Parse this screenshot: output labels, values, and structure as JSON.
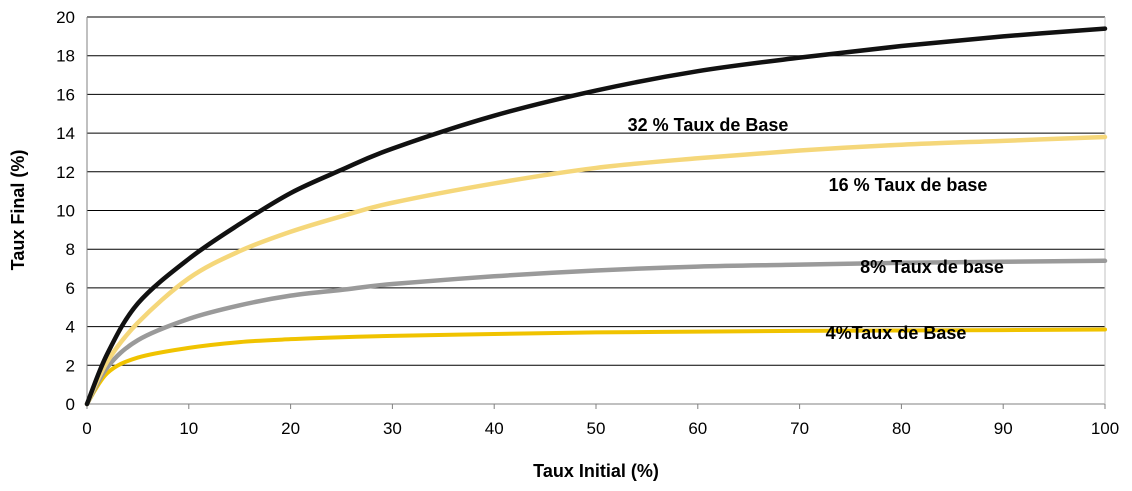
{
  "chart_data": {
    "type": "line",
    "xlabel": "Taux Initial (%)",
    "ylabel": "Taux Final (%)",
    "xlim": [
      0,
      100
    ],
    "ylim": [
      0,
      20
    ],
    "xticks": [
      "0",
      "10",
      "20",
      "30",
      "40",
      "50",
      "60",
      "70",
      "80",
      "90",
      "100"
    ],
    "yticks": [
      "0",
      "2",
      "4",
      "6",
      "8",
      "10",
      "12",
      "14",
      "16",
      "18",
      "20"
    ],
    "grid": "horizontal",
    "x": [
      0,
      2,
      5,
      10,
      15,
      20,
      25,
      30,
      40,
      50,
      60,
      70,
      80,
      90,
      100
    ],
    "series": [
      {
        "label_text": "32 % Taux de Base",
        "color": "#111111",
        "values": [
          0,
          2.6,
          5.2,
          7.5,
          9.3,
          10.9,
          12.1,
          13.2,
          14.9,
          16.2,
          17.2,
          17.9,
          18.5,
          19.0,
          19.4
        ]
      },
      {
        "label_text": "16 % Taux de base",
        "color": "#f5d77a",
        "values": [
          0,
          2.2,
          4.2,
          6.5,
          7.9,
          8.9,
          9.7,
          10.4,
          11.4,
          12.2,
          12.7,
          13.1,
          13.4,
          13.6,
          13.8
        ]
      },
      {
        "label_text": "8% Taux de base",
        "color": "#9a9a9a",
        "values": [
          0,
          1.9,
          3.3,
          4.4,
          5.1,
          5.6,
          5.9,
          6.2,
          6.6,
          6.9,
          7.1,
          7.2,
          7.3,
          7.35,
          7.4
        ]
      },
      {
        "label_text": "4%Taux de Base",
        "color": "#f0c300",
        "values": [
          0,
          1.6,
          2.4,
          2.9,
          3.2,
          3.35,
          3.45,
          3.52,
          3.62,
          3.7,
          3.74,
          3.78,
          3.8,
          3.82,
          3.85
        ]
      }
    ]
  }
}
